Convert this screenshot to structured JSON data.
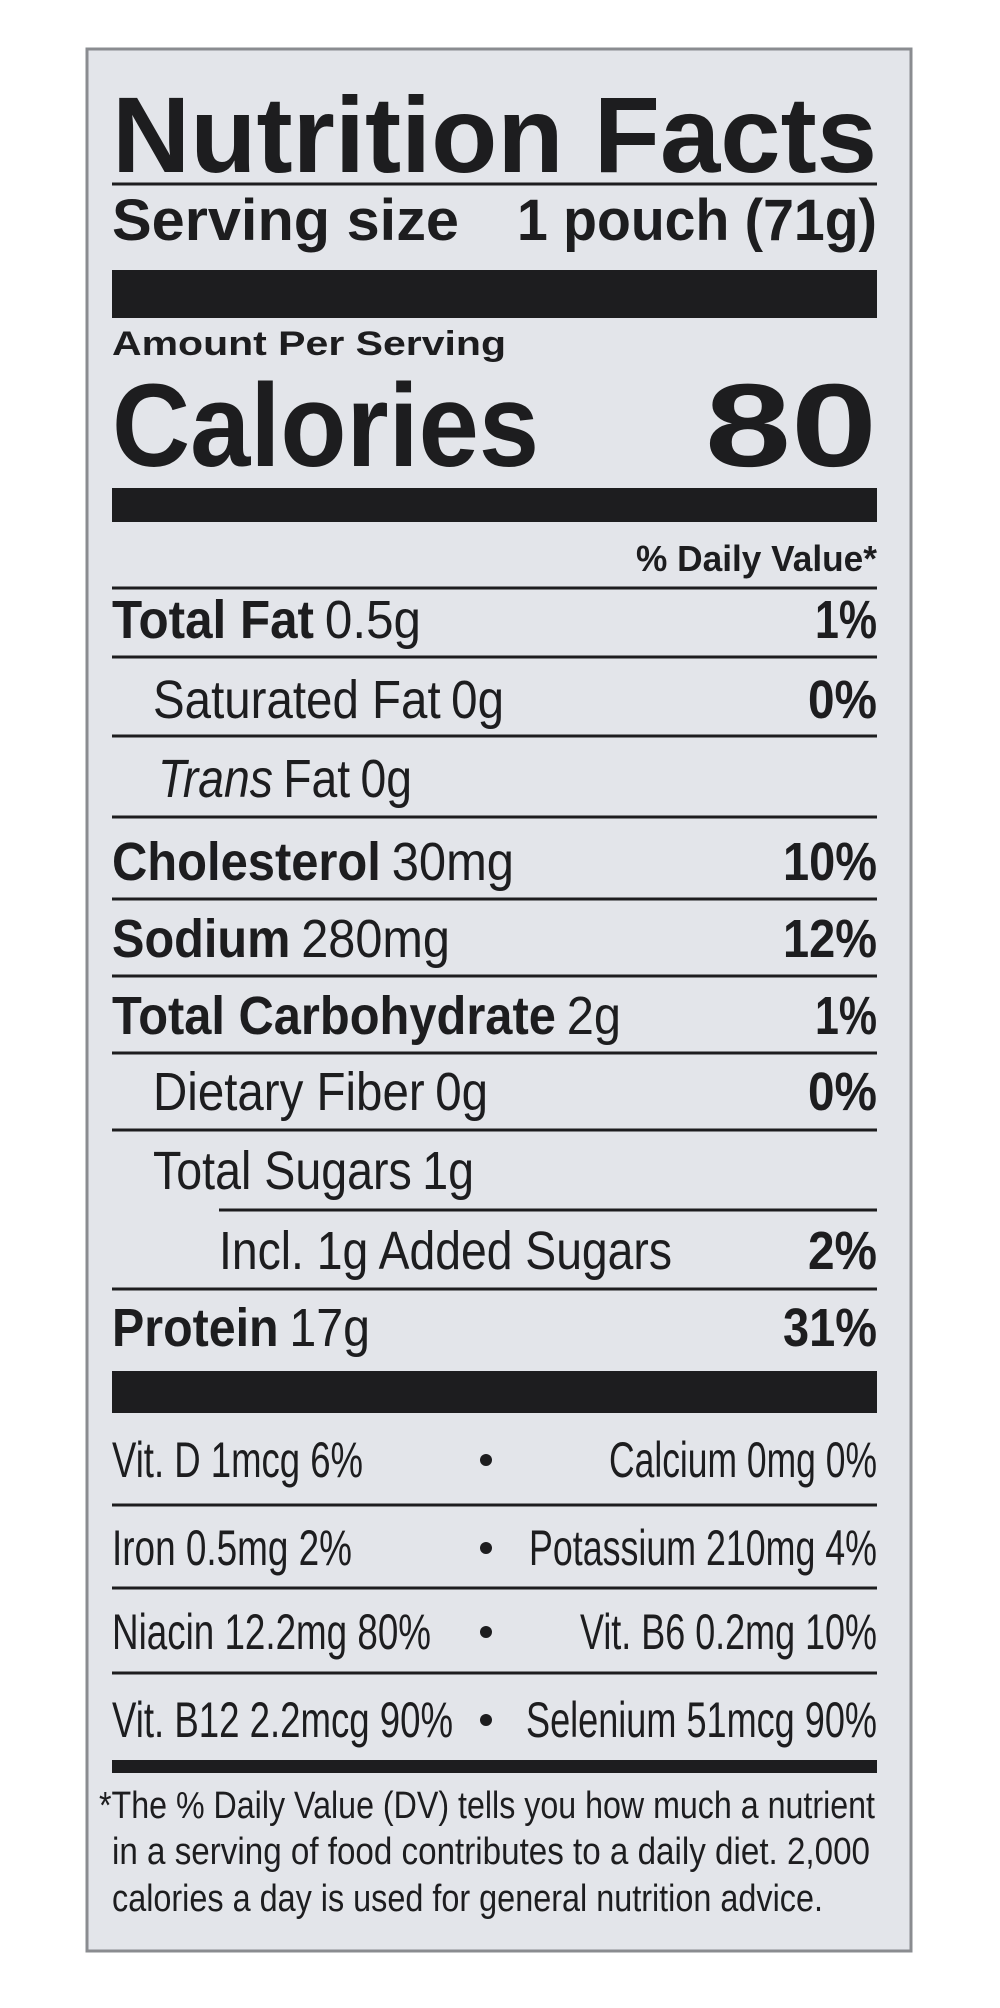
{
  "header": {
    "title": "Nutrition Facts",
    "serving_label": "Serving size",
    "serving_value": "1 pouch (71g)"
  },
  "calories": {
    "amount_label": "Amount Per Serving",
    "label": "Calories",
    "value": "80"
  },
  "dv_header": "% Daily Value*",
  "nutrients": [
    {
      "name": "Total Fat",
      "amount": "0.5g",
      "dv": "1%"
    },
    {
      "name": "Saturated Fat",
      "amount": "0g",
      "dv": "0%"
    },
    {
      "name_italic": "Trans",
      "name": "Fat",
      "amount": "0g"
    },
    {
      "name": "Cholesterol",
      "amount": "30mg",
      "dv": "10%"
    },
    {
      "name": "Sodium",
      "amount": "280mg",
      "dv": "12%"
    },
    {
      "name": "Total Carbohydrate",
      "amount": "2g",
      "dv": "1%"
    },
    {
      "name": "Dietary Fiber",
      "amount": "0g",
      "dv": "0%"
    },
    {
      "name": "Total Sugars",
      "amount": "1g"
    },
    {
      "name": "Incl. 1g Added Sugars",
      "dv": "2%"
    },
    {
      "name": "Protein",
      "amount": "17g",
      "dv": "31%"
    }
  ],
  "vitamins": [
    [
      "Vit. D 1mcg 6%",
      "Calcium 0mg 0%"
    ],
    [
      "Iron 0.5mg 2%",
      "Potassium 210mg 4%"
    ],
    [
      "Niacin 12.2mg 80%",
      "Vit. B6 0.2mg 10%"
    ],
    [
      "Vit. B12 2.2mcg 90%",
      "Selenium 51mcg 90%"
    ]
  ],
  "footnote": [
    "*The % Daily Value (DV) tells you how much a nutrient",
    "in a serving of food contributes to a daily diet. 2,000",
    "calories a day is used for general nutrition advice."
  ]
}
